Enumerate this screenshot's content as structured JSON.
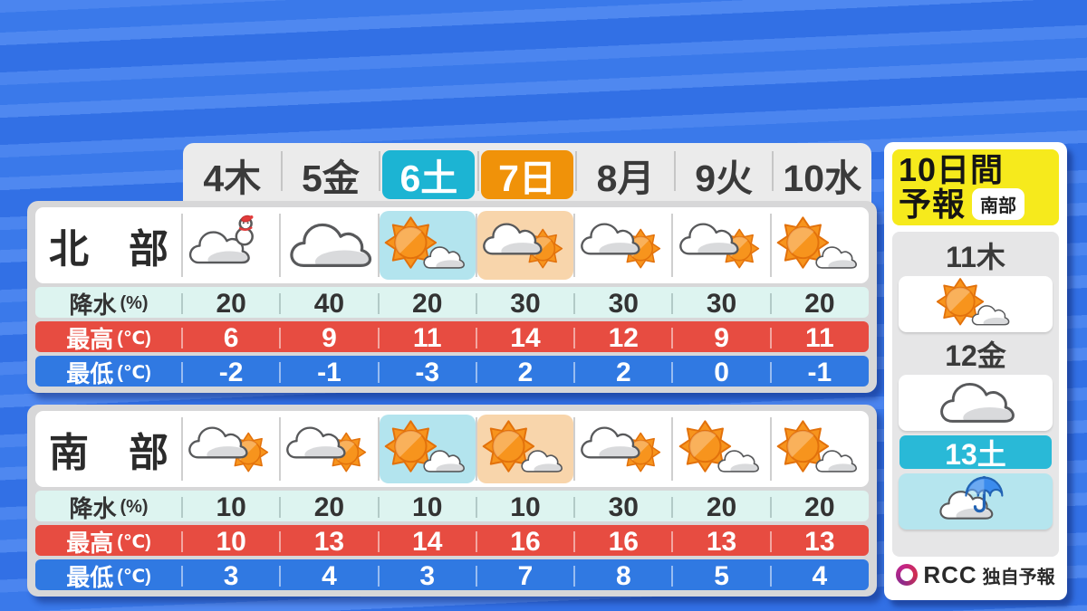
{
  "day_header": {
    "days": [
      {
        "label": "4木",
        "highlight": null
      },
      {
        "label": "5金",
        "highlight": null
      },
      {
        "label": "6土",
        "highlight": "cyan"
      },
      {
        "label": "7日",
        "highlight": "orange"
      },
      {
        "label": "8月",
        "highlight": null
      },
      {
        "label": "9火",
        "highlight": null
      },
      {
        "label": "10水",
        "highlight": null
      }
    ]
  },
  "regions": [
    {
      "key": "north",
      "name": "北　部",
      "icons": [
        "snow",
        "cloudy",
        "sun-cloud",
        "cloud-sun",
        "cloud-sun",
        "cloud-sun",
        "sun-cloud"
      ],
      "icon_highlights": [
        null,
        null,
        "cyan",
        "orange",
        null,
        null,
        null
      ],
      "rows": [
        {
          "type": "precip",
          "label": "降水",
          "unit": "(%)",
          "values": [
            "20",
            "40",
            "20",
            "30",
            "30",
            "30",
            "20"
          ]
        },
        {
          "type": "high",
          "label": "最高",
          "unit": "(℃)",
          "values": [
            "6",
            "9",
            "11",
            "14",
            "12",
            "9",
            "11"
          ]
        },
        {
          "type": "low",
          "label": "最低",
          "unit": "(℃)",
          "values": [
            "-2",
            "-1",
            "-3",
            "2",
            "2",
            "0",
            "-1"
          ]
        }
      ]
    },
    {
      "key": "south",
      "name": "南　部",
      "icons": [
        "cloud-sun",
        "cloud-sun",
        "sun-cloud",
        "sun-cloud",
        "cloud-sun",
        "sun-cloud",
        "sun-cloud"
      ],
      "icon_highlights": [
        null,
        null,
        "cyan",
        "orange",
        null,
        null,
        null
      ],
      "rows": [
        {
          "type": "precip",
          "label": "降水",
          "unit": "(%)",
          "values": [
            "10",
            "20",
            "10",
            "10",
            "30",
            "20",
            "20"
          ]
        },
        {
          "type": "high",
          "label": "最高",
          "unit": "(℃)",
          "values": [
            "10",
            "13",
            "14",
            "16",
            "16",
            "13",
            "13"
          ]
        },
        {
          "type": "low",
          "label": "最低",
          "unit": "(℃)",
          "values": [
            "3",
            "4",
            "3",
            "7",
            "8",
            "5",
            "4"
          ]
        }
      ]
    }
  ],
  "side_panel": {
    "title_line1": "10日間",
    "title_line2": "予報",
    "region_badge": "南部",
    "days": [
      {
        "label": "11木",
        "icon": "sun-cloud",
        "highlight": false
      },
      {
        "label": "12金",
        "icon": "cloudy",
        "highlight": false
      },
      {
        "label": "13土",
        "icon": "rain",
        "highlight": true
      }
    ],
    "footer": {
      "logo": "RCC",
      "note": "独自予報"
    }
  },
  "colors": {
    "bg_base": "#3b78e8",
    "bg_light": "#4f88f0",
    "bg_dark": "#3270e5",
    "header_bg": "#ebebeb",
    "saturday_cyan": "#1cb4d3",
    "sunday_orange": "#f09209",
    "precip_bg": "#ddf4f0",
    "high_bg": "#e74c41",
    "low_bg": "#3079e2",
    "icon_hl_cyan": "#b3e4ee",
    "icon_hl_orange": "#f8d5ab",
    "panel_yellow": "#f6ea1c",
    "side_day_hl": "#29b9d7",
    "side_rain_bg": "#b5e5ee",
    "sun_orange": "#f7941d",
    "rcc_purple": "#93278f",
    "text_dark": "#333333"
  },
  "chart_data": [
    {
      "type": "table",
      "region": "北部",
      "columns": [
        "4木",
        "5金",
        "6土",
        "7日",
        "8月",
        "9火",
        "10水"
      ],
      "weather": [
        "snow",
        "cloudy",
        "sun-then-cloud",
        "cloud-then-sun",
        "cloud-then-sun",
        "cloud-then-sun",
        "sun-then-cloud"
      ],
      "rows": [
        {
          "label": "降水(%)",
          "values": [
            20,
            40,
            20,
            30,
            30,
            30,
            20
          ]
        },
        {
          "label": "最高(℃)",
          "values": [
            6,
            9,
            11,
            14,
            12,
            9,
            11
          ]
        },
        {
          "label": "最低(℃)",
          "values": [
            -2,
            -1,
            -3,
            2,
            2,
            0,
            -1
          ]
        }
      ]
    },
    {
      "type": "table",
      "region": "南部",
      "columns": [
        "4木",
        "5金",
        "6土",
        "7日",
        "8月",
        "9火",
        "10水"
      ],
      "weather": [
        "cloud-then-sun",
        "cloud-then-sun",
        "sun-then-cloud",
        "sun-then-cloud",
        "cloud-then-sun",
        "sun-then-cloud",
        "sun-then-cloud"
      ],
      "rows": [
        {
          "label": "降水(%)",
          "values": [
            10,
            20,
            10,
            10,
            30,
            20,
            20
          ]
        },
        {
          "label": "最高(℃)",
          "values": [
            10,
            13,
            14,
            16,
            16,
            13,
            13
          ]
        },
        {
          "label": "最低(℃)",
          "values": [
            3,
            4,
            3,
            7,
            8,
            5,
            4
          ]
        }
      ]
    },
    {
      "type": "table",
      "region": "南部 10日間予報",
      "columns": [
        "11木",
        "12金",
        "13土"
      ],
      "weather": [
        "sun-then-cloud",
        "cloudy",
        "rain-umbrella"
      ]
    }
  ]
}
